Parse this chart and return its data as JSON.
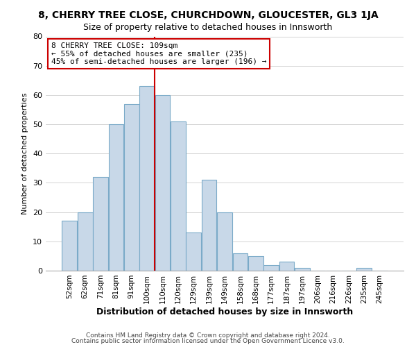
{
  "title1": "8, CHERRY TREE CLOSE, CHURCHDOWN, GLOUCESTER, GL3 1JA",
  "title2": "Size of property relative to detached houses in Innsworth",
  "xlabel": "Distribution of detached houses by size in Innsworth",
  "ylabel": "Number of detached properties",
  "footer1": "Contains HM Land Registry data © Crown copyright and database right 2024.",
  "footer2": "Contains public sector information licensed under the Open Government Licence v3.0.",
  "bar_labels": [
    "52sqm",
    "62sqm",
    "71sqm",
    "81sqm",
    "91sqm",
    "100sqm",
    "110sqm",
    "120sqm",
    "129sqm",
    "139sqm",
    "149sqm",
    "158sqm",
    "168sqm",
    "177sqm",
    "187sqm",
    "197sqm",
    "206sqm",
    "216sqm",
    "226sqm",
    "235sqm",
    "245sqm"
  ],
  "bar_values": [
    17,
    20,
    32,
    50,
    57,
    63,
    60,
    51,
    13,
    31,
    20,
    6,
    5,
    2,
    3,
    1,
    0,
    0,
    0,
    1,
    0
  ],
  "bar_color": "#c8d8e8",
  "bar_edgecolor": "#7aaac8",
  "vline_color": "#cc0000",
  "ylim": [
    0,
    80
  ],
  "yticks": [
    0,
    10,
    20,
    30,
    40,
    50,
    60,
    70,
    80
  ],
  "annotation_title": "8 CHERRY TREE CLOSE: 109sqm",
  "annotation_line1": "← 55% of detached houses are smaller (235)",
  "annotation_line2": "45% of semi-detached houses are larger (196) →",
  "annotation_box_color": "#ffffff",
  "annotation_box_edgecolor": "#cc0000",
  "title1_fontsize": 10,
  "title2_fontsize": 9,
  "xlabel_fontsize": 9,
  "ylabel_fontsize": 8,
  "xtick_fontsize": 7.5,
  "ytick_fontsize": 8,
  "annot_fontsize": 8,
  "footer_fontsize": 6.5
}
